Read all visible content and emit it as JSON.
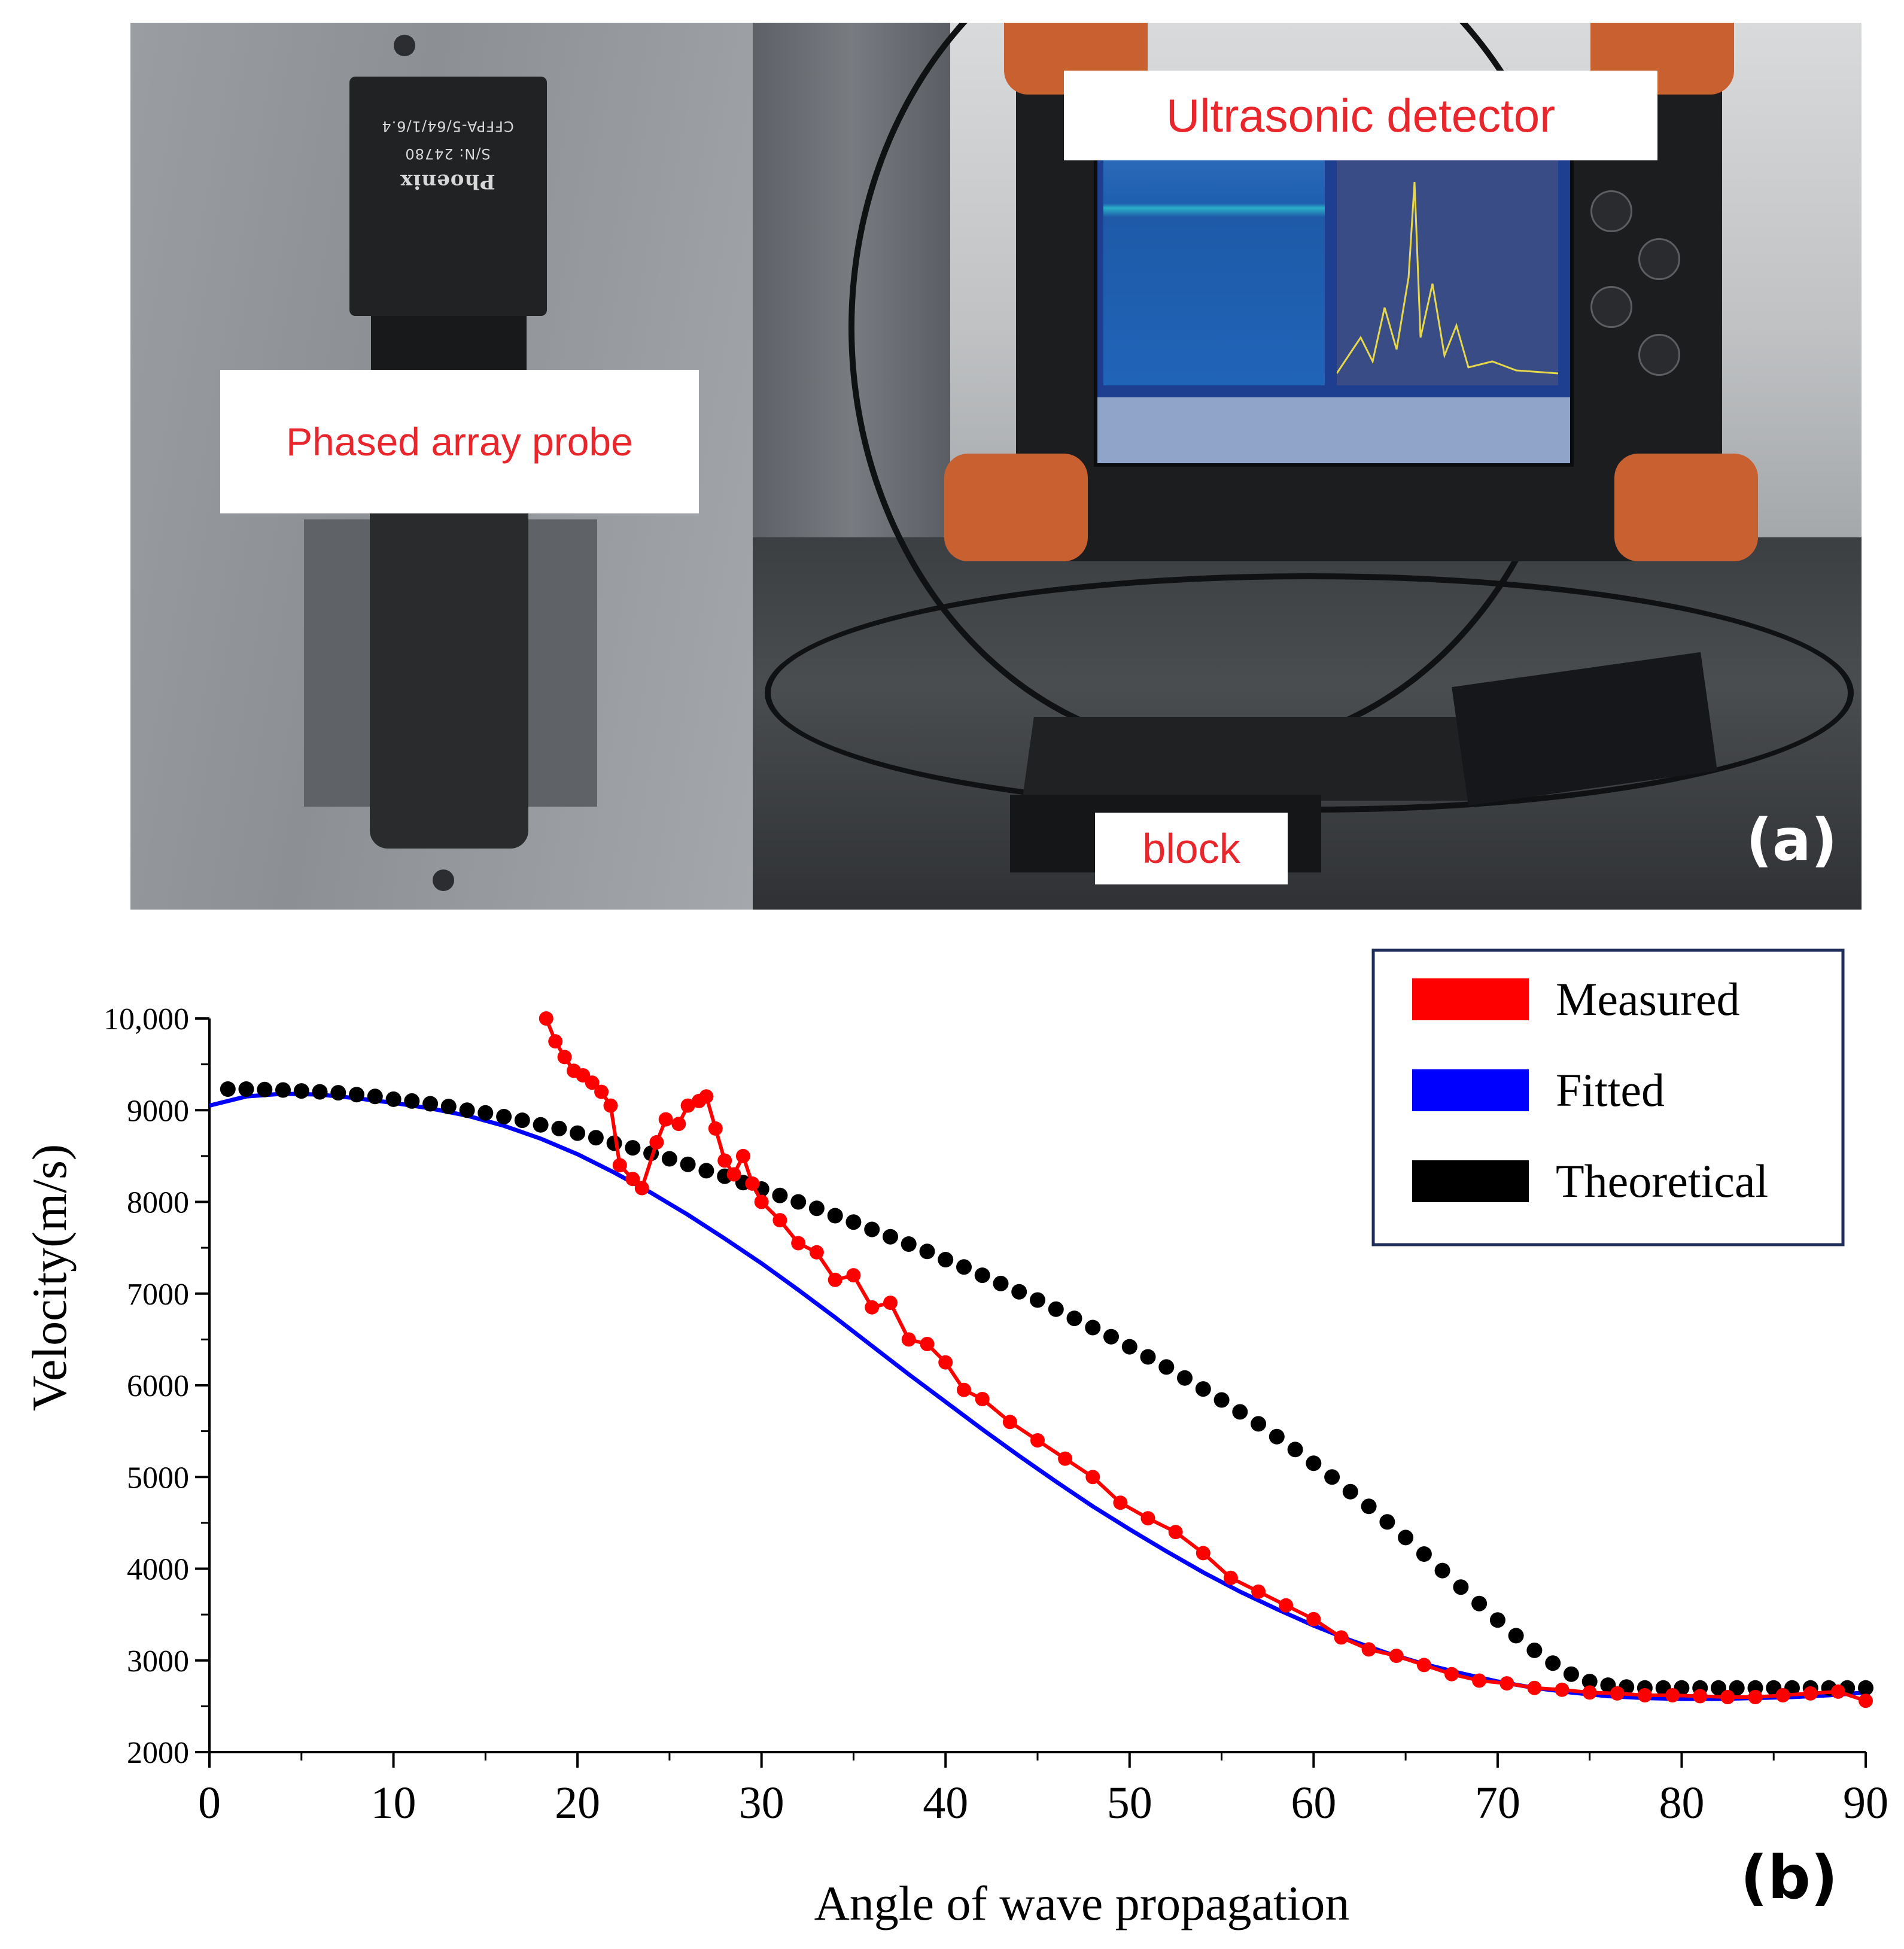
{
  "photo_labels": {
    "probe": "Phased array probe",
    "detector": "Ultrasonic detector",
    "block": "block",
    "panel": "(a)"
  },
  "probe_markings": {
    "brand": "Phoenix",
    "serial": "S/N: 24780",
    "model": "CFFPA-5/64/1/6.4"
  },
  "colors": {
    "measured": "#ff0000",
    "fitted": "#0000ff",
    "theoretical": "#000000",
    "label_text": "#e8262c",
    "legend_border": "#1f2d5a"
  },
  "chart_data": {
    "type": "line",
    "xlabel": "Angle of wave propagation",
    "ylabel": "Velocity(m/s)",
    "xlim": [
      0,
      90
    ],
    "ylim": [
      2000,
      10000
    ],
    "x_ticks": [
      "0",
      "10",
      "20",
      "30",
      "40",
      "50",
      "60",
      "70",
      "80",
      "90"
    ],
    "y_ticks": [
      "2000",
      "3000",
      "4000",
      "5000",
      "6000",
      "7000",
      "8000",
      "9000",
      "10,000"
    ],
    "legend_position": "top-right",
    "panel_label": "(b)",
    "series": [
      {
        "name": "Measured",
        "marker": "circle",
        "points": [
          [
            18.3,
            10000
          ],
          [
            18.8,
            9750
          ],
          [
            19.3,
            9580
          ],
          [
            19.8,
            9430
          ],
          [
            20.3,
            9380
          ],
          [
            20.8,
            9300
          ],
          [
            21.3,
            9200
          ],
          [
            21.8,
            9050
          ],
          [
            22.3,
            8400
          ],
          [
            23.0,
            8250
          ],
          [
            23.5,
            8150
          ],
          [
            24.3,
            8650
          ],
          [
            24.8,
            8900
          ],
          [
            25.5,
            8850
          ],
          [
            26.0,
            9050
          ],
          [
            26.6,
            9100
          ],
          [
            27.0,
            9150
          ],
          [
            27.5,
            8800
          ],
          [
            28.0,
            8450
          ],
          [
            28.5,
            8300
          ],
          [
            29.0,
            8500
          ],
          [
            29.5,
            8200
          ],
          [
            30.0,
            8000
          ],
          [
            31.0,
            7800
          ],
          [
            32.0,
            7550
          ],
          [
            33.0,
            7450
          ],
          [
            34.0,
            7150
          ],
          [
            35.0,
            7200
          ],
          [
            36.0,
            6850
          ],
          [
            37.0,
            6900
          ],
          [
            38.0,
            6500
          ],
          [
            39.0,
            6450
          ],
          [
            40.0,
            6250
          ],
          [
            41.0,
            5950
          ],
          [
            42.0,
            5850
          ],
          [
            43.5,
            5600
          ],
          [
            45.0,
            5400
          ],
          [
            46.5,
            5200
          ],
          [
            48.0,
            5000
          ],
          [
            49.5,
            4720
          ],
          [
            51.0,
            4550
          ],
          [
            52.5,
            4400
          ],
          [
            54.0,
            4170
          ],
          [
            55.5,
            3900
          ],
          [
            57.0,
            3750
          ],
          [
            58.5,
            3600
          ],
          [
            60.0,
            3450
          ],
          [
            61.5,
            3250
          ],
          [
            63.0,
            3120
          ],
          [
            64.5,
            3050
          ],
          [
            66.0,
            2950
          ],
          [
            67.5,
            2850
          ],
          [
            69.0,
            2780
          ],
          [
            70.5,
            2750
          ],
          [
            72.0,
            2700
          ],
          [
            73.5,
            2680
          ],
          [
            75.0,
            2650
          ],
          [
            76.5,
            2640
          ],
          [
            78.0,
            2620
          ],
          [
            79.5,
            2620
          ],
          [
            81.0,
            2610
          ],
          [
            82.5,
            2600
          ],
          [
            84.0,
            2600
          ],
          [
            85.5,
            2620
          ],
          [
            87.0,
            2640
          ],
          [
            88.5,
            2660
          ],
          [
            90.0,
            2560
          ]
        ]
      },
      {
        "name": "Fitted",
        "marker": "none",
        "points": [
          [
            0,
            9050
          ],
          [
            2,
            9150
          ],
          [
            4,
            9180
          ],
          [
            6,
            9170
          ],
          [
            8,
            9130
          ],
          [
            10,
            9080
          ],
          [
            12,
            9020
          ],
          [
            14,
            8940
          ],
          [
            16,
            8830
          ],
          [
            18,
            8690
          ],
          [
            20,
            8520
          ],
          [
            22,
            8320
          ],
          [
            24,
            8100
          ],
          [
            26,
            7860
          ],
          [
            28,
            7600
          ],
          [
            30,
            7330
          ],
          [
            32,
            7040
          ],
          [
            34,
            6740
          ],
          [
            36,
            6430
          ],
          [
            38,
            6120
          ],
          [
            40,
            5820
          ],
          [
            42,
            5520
          ],
          [
            44,
            5230
          ],
          [
            46,
            4950
          ],
          [
            48,
            4680
          ],
          [
            50,
            4430
          ],
          [
            52,
            4190
          ],
          [
            54,
            3960
          ],
          [
            56,
            3750
          ],
          [
            58,
            3560
          ],
          [
            60,
            3380
          ],
          [
            62,
            3220
          ],
          [
            64,
            3080
          ],
          [
            66,
            2960
          ],
          [
            68,
            2860
          ],
          [
            70,
            2770
          ],
          [
            72,
            2700
          ],
          [
            74,
            2650
          ],
          [
            76,
            2610
          ],
          [
            78,
            2590
          ],
          [
            80,
            2580
          ],
          [
            82,
            2580
          ],
          [
            84,
            2590
          ],
          [
            86,
            2600
          ],
          [
            88,
            2620
          ],
          [
            90,
            2650
          ]
        ]
      },
      {
        "name": "Theoretical",
        "marker": "circle",
        "points": [
          [
            1,
            9230
          ],
          [
            2,
            9230
          ],
          [
            3,
            9225
          ],
          [
            4,
            9220
          ],
          [
            5,
            9210
          ],
          [
            6,
            9200
          ],
          [
            7,
            9190
          ],
          [
            8,
            9170
          ],
          [
            9,
            9150
          ],
          [
            10,
            9120
          ],
          [
            11,
            9100
          ],
          [
            12,
            9070
          ],
          [
            13,
            9040
          ],
          [
            14,
            9000
          ],
          [
            15,
            8970
          ],
          [
            16,
            8930
          ],
          [
            17,
            8890
          ],
          [
            18,
            8840
          ],
          [
            19,
            8800
          ],
          [
            20,
            8750
          ],
          [
            21,
            8700
          ],
          [
            22,
            8640
          ],
          [
            23,
            8590
          ],
          [
            24,
            8530
          ],
          [
            25,
            8470
          ],
          [
            26,
            8410
          ],
          [
            27,
            8340
          ],
          [
            28,
            8280
          ],
          [
            29,
            8210
          ],
          [
            30,
            8140
          ],
          [
            31,
            8070
          ],
          [
            32,
            8000
          ],
          [
            33,
            7930
          ],
          [
            34,
            7850
          ],
          [
            35,
            7780
          ],
          [
            36,
            7700
          ],
          [
            37,
            7620
          ],
          [
            38,
            7540
          ],
          [
            39,
            7460
          ],
          [
            40,
            7370
          ],
          [
            41,
            7290
          ],
          [
            42,
            7200
          ],
          [
            43,
            7110
          ],
          [
            44,
            7020
          ],
          [
            45,
            6930
          ],
          [
            46,
            6830
          ],
          [
            47,
            6730
          ],
          [
            48,
            6630
          ],
          [
            49,
            6530
          ],
          [
            50,
            6420
          ],
          [
            51,
            6310
          ],
          [
            52,
            6200
          ],
          [
            53,
            6080
          ],
          [
            54,
            5960
          ],
          [
            55,
            5840
          ],
          [
            56,
            5710
          ],
          [
            57,
            5580
          ],
          [
            58,
            5440
          ],
          [
            59,
            5300
          ],
          [
            60,
            5150
          ],
          [
            61,
            5000
          ],
          [
            62,
            4840
          ],
          [
            63,
            4680
          ],
          [
            64,
            4510
          ],
          [
            65,
            4340
          ],
          [
            66,
            4160
          ],
          [
            67,
            3980
          ],
          [
            68,
            3800
          ],
          [
            69,
            3620
          ],
          [
            70,
            3440
          ],
          [
            71,
            3270
          ],
          [
            72,
            3110
          ],
          [
            73,
            2970
          ],
          [
            74,
            2850
          ],
          [
            75,
            2770
          ],
          [
            76,
            2730
          ],
          [
            77,
            2710
          ],
          [
            78,
            2700
          ],
          [
            79,
            2700
          ],
          [
            80,
            2700
          ],
          [
            81,
            2700
          ],
          [
            82,
            2700
          ],
          [
            83,
            2700
          ],
          [
            84,
            2700
          ],
          [
            85,
            2700
          ],
          [
            86,
            2700
          ],
          [
            87,
            2700
          ],
          [
            88,
            2700
          ],
          [
            89,
            2700
          ],
          [
            90,
            2700
          ]
        ]
      }
    ]
  }
}
